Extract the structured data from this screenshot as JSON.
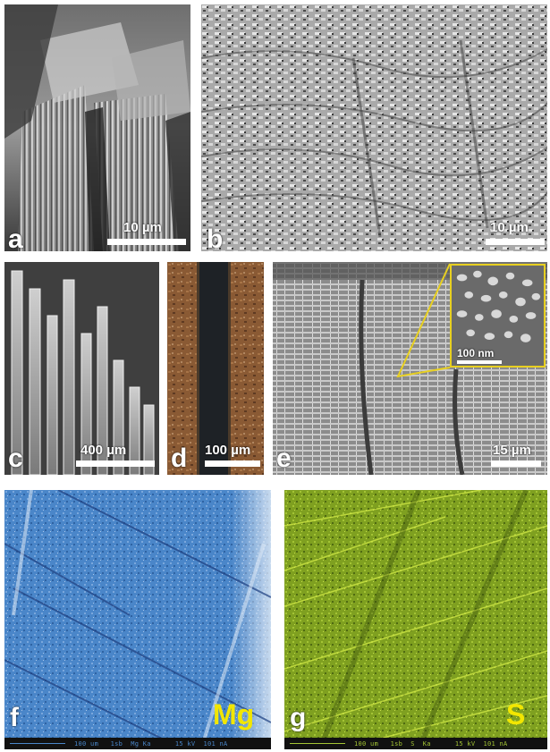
{
  "panels": {
    "a": {
      "letter": "a",
      "scale": "10 µm"
    },
    "b": {
      "letter": "b",
      "scale": "10 µm"
    },
    "c": {
      "letter": "c",
      "scale": "400 µm"
    },
    "d": {
      "letter": "d",
      "scale": "100 µm"
    },
    "e": {
      "letter": "e",
      "scale": "15 µm",
      "inset_scale": "100 nm"
    },
    "f": {
      "letter": "f",
      "element": "Mg",
      "footer": "100 um   1sb  Mg Ka      15 kV  101 nA"
    },
    "g": {
      "letter": "g",
      "element": "S",
      "footer": "100 um   1sb  S  Ka      15 kV  101 nA"
    }
  },
  "colors": {
    "mg_map": "#4a86c9",
    "s_map": "#7fa020",
    "element_label": "#f2e600",
    "inset_outline": "#e8d020"
  }
}
